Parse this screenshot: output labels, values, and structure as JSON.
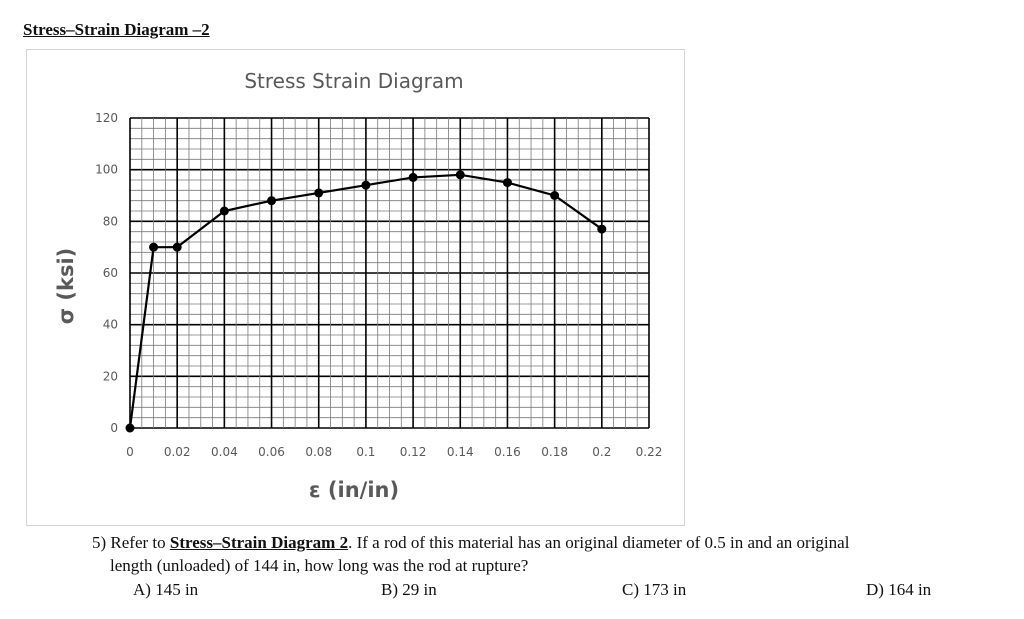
{
  "heading": "Stress–Strain Diagram –2",
  "chart_data": {
    "type": "line",
    "title": "Stress Strain Diagram",
    "xlabel": "ε (in/in)",
    "ylabel": "σ (ksi)",
    "xlim": [
      0,
      0.22
    ],
    "ylim": [
      0,
      120
    ],
    "x_ticks": [
      "0",
      "0.02",
      "0.04",
      "0.06",
      "0.08",
      "0.1",
      "0.12",
      "0.14",
      "0.16",
      "0.18",
      "0.2",
      "0.22"
    ],
    "y_ticks": [
      "0",
      "20",
      "40",
      "60",
      "80",
      "100",
      "120"
    ],
    "grid": true,
    "series": [
      {
        "x": [
          0,
          0.01,
          0.02,
          0.04,
          0.06,
          0.08,
          0.1,
          0.12,
          0.14,
          0.16,
          0.18,
          0.2
        ],
        "y": [
          0,
          70,
          70,
          84,
          88,
          91,
          94,
          97,
          98,
          95,
          90,
          77
        ]
      }
    ]
  },
  "question": {
    "prefix": "5) Refer to ",
    "ref": "Stress–Strain Diagram 2",
    "text_after_ref": ". If a rod of this material has an original diameter of 0.5 in and an original",
    "line2": "length (unloaded) of 144 in, how long was the rod at rupture?"
  },
  "choices": [
    "A) 145 in",
    "B) 29 in",
    "C) 173 in",
    "D) 164 in"
  ]
}
